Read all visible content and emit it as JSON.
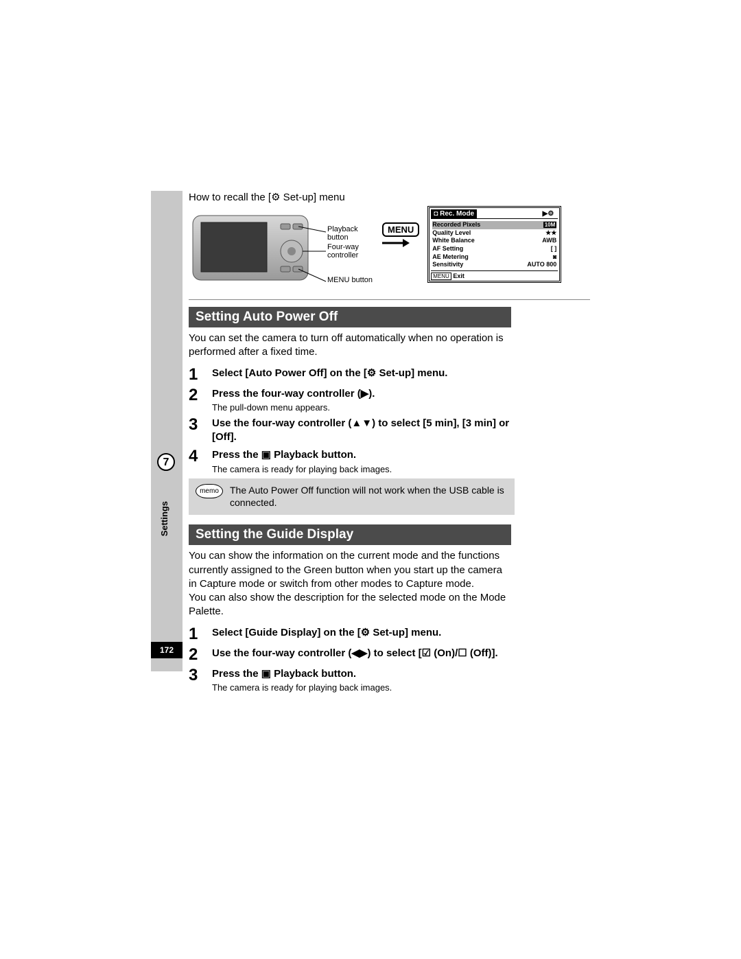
{
  "page": {
    "recall_line_prefix": "How to recall the [",
    "recall_line_suffix": " Set-up] menu",
    "setup_icon": "⚙",
    "page_number": "172",
    "chapter_number": "7",
    "chapter_label": "Settings"
  },
  "diagram": {
    "callouts": {
      "playback": "Playback button",
      "fourway": "Four-way controller",
      "menubtn": "MENU button"
    },
    "menu_badge": "MENU"
  },
  "lcd": {
    "tab_active_icon": "◘",
    "tab_active": "Rec. Mode",
    "tab_other_icon": "▶⚙",
    "rows": [
      {
        "label": "Recorded Pixels",
        "value": "10M",
        "badge": true,
        "hl": true
      },
      {
        "label": "Quality Level",
        "value": "★★",
        "badge": false,
        "hl": false
      },
      {
        "label": "White Balance",
        "value": "AWB",
        "badge": false,
        "hl": false
      },
      {
        "label": "AF Setting",
        "value": "[ ]",
        "badge": false,
        "hl": false
      },
      {
        "label": "AE Metering",
        "value": "◙",
        "badge": false,
        "hl": false
      },
      {
        "label": "Sensitivity",
        "value": "AUTO 800",
        "badge": false,
        "hl": false
      }
    ],
    "footer_btn": "MENU",
    "footer_label": "Exit"
  },
  "section1": {
    "title": "Setting Auto Power Off",
    "intro": "You can set the camera to turn off automatically when no operation is performed after a fixed time.",
    "steps": [
      {
        "n": "1",
        "title_pre": "Select [Auto Power Off] on the [",
        "title_post": " Set-up] menu.",
        "icon": "⚙",
        "sub": ""
      },
      {
        "n": "2",
        "title_pre": "Press the four-way controller (",
        "title_post": ").",
        "icon": "▶",
        "sub": "The pull-down menu appears."
      },
      {
        "n": "3",
        "title_pre": "Use the four-way controller (",
        "title_post": ") to select [5 min], [3 min] or [Off].",
        "icon": "▲▼",
        "sub": ""
      },
      {
        "n": "4",
        "title_pre": "Press the ",
        "title_post": " Playback button.",
        "icon": "▣",
        "sub": "The camera is ready for playing back images."
      }
    ],
    "memo": "The Auto Power Off function will not work when the USB cable is connected.",
    "memo_tag": "memo"
  },
  "section2": {
    "title": "Setting the Guide Display",
    "intro": "You can show the information on the current mode and the functions currently assigned to the Green button when you start up the camera in Capture mode or switch from other modes to Capture mode.\nYou can also show the description for the selected mode on the Mode Palette.",
    "steps": [
      {
        "n": "1",
        "title_pre": "Select [Guide Display] on the [",
        "title_post": " Set-up] menu.",
        "icon": "⚙",
        "sub": ""
      },
      {
        "n": "2",
        "title_pre": "Use the four-way controller (",
        "title_post": ") to select [☑ (On)/☐ (Off)].",
        "icon": "◀▶",
        "sub": ""
      },
      {
        "n": "3",
        "title_pre": "Press the ",
        "title_post": " Playback button.",
        "icon": "▣",
        "sub": "The camera is ready for playing back images."
      }
    ]
  },
  "colors": {
    "gray_tab": "#c8c8c8",
    "section_bar": "#4b4b4b",
    "memo_bg": "#d6d6d6",
    "divider": "#888888"
  }
}
